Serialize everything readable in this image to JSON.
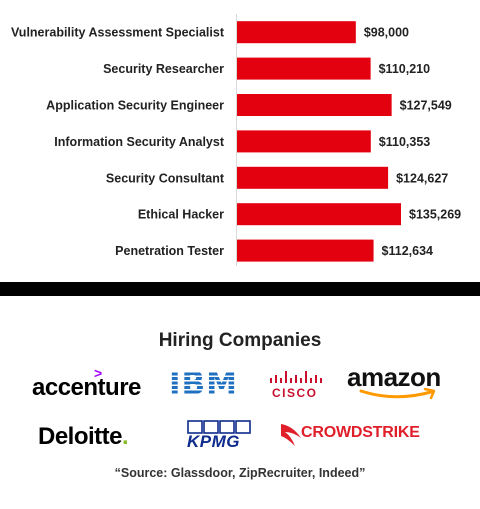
{
  "chart_data": {
    "type": "bar",
    "orientation": "horizontal",
    "categories": [
      "Vulnerability Assessment Specialist",
      "Security Researcher",
      "Application Security Engineer",
      "Information Security Analyst",
      "Security Consultant",
      "Ethical Hacker",
      "Penetration Tester"
    ],
    "values": [
      98000,
      110210,
      127549,
      110353,
      124627,
      135269,
      112634
    ],
    "value_labels": [
      "$98,000",
      "$110,210",
      "$127,549",
      "$110,353",
      "$124,627",
      "$135,269",
      "$112,634"
    ],
    "xlim": [
      0,
      135269
    ],
    "bar_color": "#e3000f",
    "grid": false,
    "legend": "none"
  },
  "hiring": {
    "title": "Hiring Companies",
    "companies": [
      {
        "name": "accenture",
        "icon": "accenture-logo",
        "accent": "#a100ff"
      },
      {
        "name": "IBM",
        "icon": "ibm-logo",
        "accent": "#1f70c1"
      },
      {
        "name": "CISCO",
        "icon": "cisco-logo",
        "accent": "#c8102e"
      },
      {
        "name": "amazon",
        "icon": "amazon-logo",
        "accent": "#ff9900"
      },
      {
        "name": "Deloitte",
        "icon": "deloitte-logo",
        "accent": "#86bc25"
      },
      {
        "name": "KPMG",
        "icon": "kpmg-logo",
        "accent": "#0e2b8d"
      },
      {
        "name": "CROWDSTRIKE",
        "icon": "crowdstrike-logo",
        "accent": "#e01f2b"
      }
    ]
  },
  "source": "“Source: Glassdoor, ZipRecruiter, Indeed”"
}
